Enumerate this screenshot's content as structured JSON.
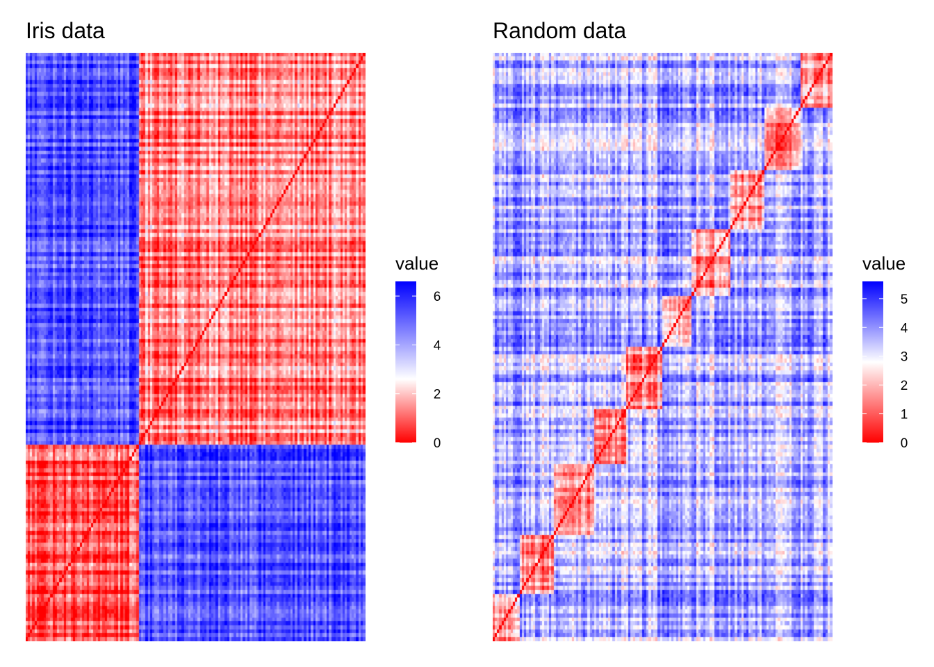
{
  "colors": {
    "low": "#ff0000",
    "mid": "#ffffff",
    "high": "#0000ff"
  },
  "chart_data": [
    {
      "type": "heatmap",
      "title": "Iris data",
      "xlabel": "",
      "ylabel": "",
      "legend": {
        "title": "value",
        "placement": "right",
        "limits": [
          0,
          6.6
        ],
        "midpoint": 2.6,
        "ticks": [
          0,
          2,
          4,
          6
        ],
        "tick_labels": [
          "0",
          "2",
          "4",
          "6"
        ]
      },
      "matrix": {
        "size": 150,
        "description_of_values": "pairwise distance matrix, clustered",
        "cluster_sizes": [
          50,
          100
        ],
        "block_values": [
          [
            0.8,
            5.3
          ],
          [
            5.3,
            1.4
          ]
        ],
        "diagonal": 0
      }
    },
    {
      "type": "heatmap",
      "title": "Random data",
      "xlabel": "",
      "ylabel": "",
      "legend": {
        "title": "value",
        "placement": "right",
        "limits": [
          0,
          5.6
        ],
        "midpoint": 2.8,
        "ticks": [
          0,
          1,
          2,
          3,
          4,
          5
        ],
        "tick_labels": [
          "0",
          "1",
          "2",
          "3",
          "4",
          "5"
        ]
      },
      "matrix": {
        "size": 150,
        "description_of_values": "pairwise distance matrix of random data, clustered",
        "cluster_sizes": [
          12,
          15,
          18,
          14,
          16,
          13,
          17,
          15,
          16,
          14
        ],
        "within_value": 1.6,
        "between_value": 3.6,
        "diagonal": 0
      }
    }
  ]
}
